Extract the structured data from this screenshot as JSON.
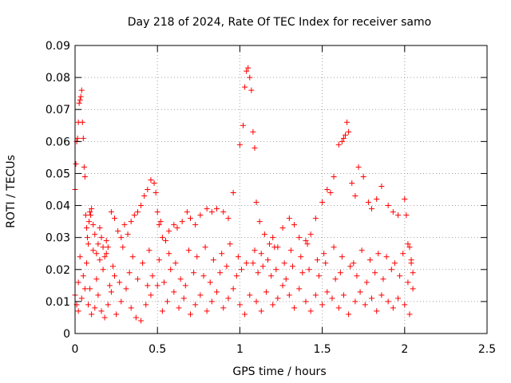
{
  "chart_data": {
    "type": "scatter",
    "title": "Day 218 of 2024, Rate Of TEC Index for receiver samo",
    "xlabel": "GPS time / hours",
    "ylabel": "ROTI / TECUs",
    "xlim": [
      0,
      2.5
    ],
    "ylim": [
      0,
      0.09
    ],
    "xticks": [
      0,
      0.5,
      1,
      1.5,
      2,
      2.5
    ],
    "xtick_labels": [
      "0",
      "0.5",
      "1",
      "1.5",
      "2",
      "2.5"
    ],
    "yticks": [
      0,
      0.01,
      0.02,
      0.03,
      0.04,
      0.05,
      0.06,
      0.07,
      0.08,
      0.09
    ],
    "ytick_labels": [
      "0",
      "0.01",
      "0.02",
      "0.03",
      "0.04",
      "0.05",
      "0.06",
      "0.07",
      "0.08",
      "0.09"
    ],
    "grid": true,
    "marker": "+",
    "color": "#ff0000",
    "series": [
      {
        "name": "ROTI",
        "x": [
          0.0,
          0.005,
          0.01,
          0.015,
          0.02,
          0.025,
          0.03,
          0.035,
          0.04,
          0.045,
          0.05,
          0.055,
          0.06,
          0.065,
          0.07,
          0.075,
          0.08,
          0.085,
          0.09,
          0.095,
          0.1,
          0.11,
          0.12,
          0.13,
          0.14,
          0.15,
          0.16,
          0.17,
          0.18,
          0.19,
          0.2,
          0.22,
          0.24,
          0.26,
          0.28,
          0.3,
          0.32,
          0.34,
          0.36,
          0.38,
          0.4,
          0.42,
          0.44,
          0.46,
          0.48,
          0.49,
          0.5,
          0.51,
          0.52,
          0.53,
          0.55,
          0.57,
          0.6,
          0.62,
          0.65,
          0.68,
          0.7,
          0.73,
          0.76,
          0.8,
          0.83,
          0.86,
          0.9,
          0.93,
          0.96,
          1.0,
          1.02,
          1.03,
          1.04,
          1.05,
          1.06,
          1.07,
          1.08,
          1.09,
          1.1,
          1.12,
          1.15,
          1.18,
          1.2,
          1.23,
          1.26,
          1.3,
          1.33,
          1.36,
          1.4,
          1.43,
          1.46,
          1.5,
          1.53,
          1.55,
          1.57,
          1.6,
          1.62,
          1.63,
          1.64,
          1.65,
          1.66,
          1.68,
          1.7,
          1.72,
          1.75,
          1.78,
          1.8,
          1.83,
          1.86,
          1.9,
          1.93,
          1.96,
          2.0,
          2.01,
          2.02,
          2.03,
          2.04,
          2.05,
          0.0,
          0.01,
          0.02,
          0.04,
          0.06,
          0.08,
          0.1,
          0.12,
          0.14,
          0.16,
          0.18,
          0.2,
          0.22,
          0.25,
          0.28,
          0.31,
          0.34,
          0.37,
          0.4,
          0.43,
          0.46,
          0.5,
          0.53,
          0.56,
          0.6,
          0.63,
          0.66,
          0.7,
          0.73,
          0.76,
          0.8,
          0.83,
          0.86,
          0.9,
          0.93,
          0.96,
          1.0,
          1.03,
          1.06,
          1.1,
          1.13,
          1.16,
          1.2,
          1.23,
          1.26,
          1.3,
          1.33,
          1.36,
          1.4,
          1.43,
          1.46,
          1.5,
          1.53,
          1.56,
          1.6,
          1.63,
          1.66,
          1.7,
          1.73,
          1.76,
          1.8,
          1.83,
          1.86,
          1.9,
          1.93,
          1.96,
          2.0,
          2.03,
          0.02,
          0.05,
          0.09,
          0.13,
          0.17,
          0.21,
          0.24,
          0.27,
          0.33,
          0.38,
          0.44,
          0.47,
          0.54,
          0.58,
          0.64,
          0.67,
          0.72,
          0.78,
          0.82,
          0.88,
          0.92,
          0.98,
          1.01,
          1.08,
          1.11,
          1.14,
          1.19,
          1.22,
          1.28,
          1.32,
          1.38,
          1.42,
          1.48,
          1.52,
          1.58,
          1.61,
          1.67,
          1.71,
          1.77,
          1.82,
          1.87,
          1.92,
          1.97,
          2.02,
          2.05,
          0.03,
          0.07,
          0.11,
          0.15,
          0.19,
          0.23,
          0.29,
          0.35,
          0.41,
          0.45,
          0.51,
          0.57,
          0.61,
          0.69,
          0.74,
          0.79,
          0.84,
          0.89,
          0.94,
          0.99,
          1.04,
          1.09,
          1.13,
          1.17,
          1.21,
          1.27,
          1.31,
          1.37,
          1.41,
          1.47,
          1.51,
          1.57,
          1.62,
          1.69,
          1.74,
          1.79,
          1.84,
          1.89,
          1.94,
          1.99,
          2.04
        ],
        "y": [
          0.045,
          0.053,
          0.06,
          0.061,
          0.066,
          0.072,
          0.073,
          0.074,
          0.076,
          0.066,
          0.061,
          0.052,
          0.049,
          0.037,
          0.033,
          0.03,
          0.028,
          0.035,
          0.038,
          0.037,
          0.039,
          0.034,
          0.031,
          0.025,
          0.028,
          0.033,
          0.03,
          0.027,
          0.024,
          0.029,
          0.027,
          0.038,
          0.036,
          0.032,
          0.03,
          0.034,
          0.031,
          0.035,
          0.037,
          0.038,
          0.04,
          0.043,
          0.045,
          0.048,
          0.047,
          0.044,
          0.038,
          0.034,
          0.035,
          0.03,
          0.029,
          0.032,
          0.034,
          0.033,
          0.035,
          0.038,
          0.036,
          0.034,
          0.037,
          0.039,
          0.038,
          0.039,
          0.038,
          0.036,
          0.044,
          0.059,
          0.065,
          0.077,
          0.082,
          0.083,
          0.08,
          0.076,
          0.063,
          0.058,
          0.041,
          0.035,
          0.031,
          0.028,
          0.03,
          0.027,
          0.033,
          0.036,
          0.034,
          0.03,
          0.029,
          0.031,
          0.036,
          0.041,
          0.045,
          0.044,
          0.049,
          0.059,
          0.06,
          0.061,
          0.062,
          0.066,
          0.063,
          0.047,
          0.043,
          0.052,
          0.049,
          0.041,
          0.039,
          0.042,
          0.046,
          0.04,
          0.038,
          0.037,
          0.042,
          0.037,
          0.028,
          0.027,
          0.022,
          0.019,
          0.012,
          0.009,
          0.007,
          0.011,
          0.014,
          0.009,
          0.006,
          0.008,
          0.012,
          0.007,
          0.005,
          0.009,
          0.013,
          0.006,
          0.01,
          0.014,
          0.008,
          0.005,
          0.004,
          0.009,
          0.012,
          0.015,
          0.007,
          0.01,
          0.013,
          0.008,
          0.011,
          0.006,
          0.009,
          0.012,
          0.007,
          0.01,
          0.013,
          0.008,
          0.011,
          0.014,
          0.009,
          0.006,
          0.012,
          0.01,
          0.007,
          0.013,
          0.009,
          0.011,
          0.015,
          0.012,
          0.008,
          0.014,
          0.01,
          0.007,
          0.012,
          0.009,
          0.013,
          0.011,
          0.008,
          0.012,
          0.006,
          0.01,
          0.013,
          0.009,
          0.011,
          0.007,
          0.012,
          0.01,
          0.008,
          0.011,
          0.009,
          0.006,
          0.016,
          0.018,
          0.014,
          0.017,
          0.02,
          0.015,
          0.018,
          0.016,
          0.019,
          0.017,
          0.015,
          0.018,
          0.016,
          0.02,
          0.017,
          0.015,
          0.019,
          0.018,
          0.016,
          0.019,
          0.021,
          0.018,
          0.02,
          0.022,
          0.019,
          0.021,
          0.018,
          0.02,
          0.017,
          0.021,
          0.019,
          0.02,
          0.018,
          0.022,
          0.017,
          0.019,
          0.021,
          0.018,
          0.016,
          0.019,
          0.017,
          0.02,
          0.018,
          0.016,
          0.014,
          0.024,
          0.022,
          0.026,
          0.023,
          0.025,
          0.021,
          0.027,
          0.024,
          0.022,
          0.026,
          0.023,
          0.025,
          0.022,
          0.026,
          0.024,
          0.027,
          0.023,
          0.025,
          0.028,
          0.024,
          0.022,
          0.026,
          0.025,
          0.023,
          0.027,
          0.022,
          0.026,
          0.024,
          0.028,
          0.023,
          0.025,
          0.027,
          0.024,
          0.022,
          0.026,
          0.023,
          0.025,
          0.024,
          0.022,
          0.025,
          0.023
        ]
      }
    ]
  }
}
